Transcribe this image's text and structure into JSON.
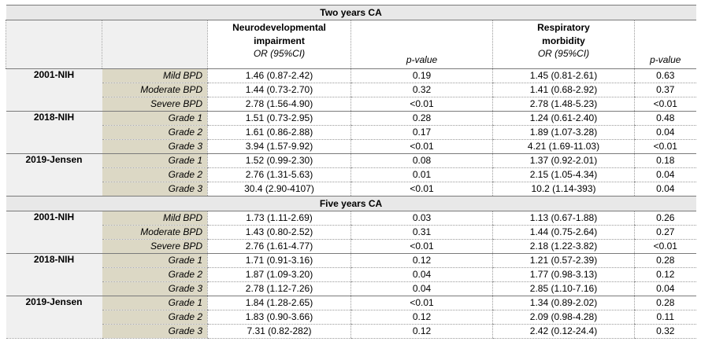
{
  "sections": [
    {
      "title": "Two years CA",
      "groups": [
        {
          "name": "2001-NIH",
          "rows": [
            {
              "label": "Mild BPD",
              "ndi_or": "1.46 (0.87-2.42)",
              "ndi_p": "0.19",
              "resp_or": "1.45 (0.81-2.61)",
              "resp_p": "0.63"
            },
            {
              "label": "Moderate BPD",
              "ndi_or": "1.44 (0.73-2.70)",
              "ndi_p": "0.32",
              "resp_or": "1.41 (0.68-2.92)",
              "resp_p": "0.37"
            },
            {
              "label": "Severe BPD",
              "ndi_or": "2.78 (1.56-4.90)",
              "ndi_p": "<0.01",
              "resp_or": "2.78 (1.48-5.23)",
              "resp_p": "<0.01"
            }
          ]
        },
        {
          "name": "2018-NIH",
          "rows": [
            {
              "label": "Grade 1",
              "ndi_or": "1.51 (0.73-2.95)",
              "ndi_p": "0.28",
              "resp_or": "1.24 (0.61-2.40)",
              "resp_p": "0.48"
            },
            {
              "label": "Grade 2",
              "ndi_or": "1.61 (0.86-2.88)",
              "ndi_p": "0.17",
              "resp_or": "1.89 (1.07-3.28)",
              "resp_p": "0.04"
            },
            {
              "label": "Grade 3",
              "ndi_or": "3.94 (1.57-9.92)",
              "ndi_p": "<0.01",
              "resp_or": "4.21 (1.69-11.03)",
              "resp_p": "<0.01"
            }
          ]
        },
        {
          "name": "2019-Jensen",
          "rows": [
            {
              "label": "Grade 1",
              "ndi_or": "1.52 (0.99-2.30)",
              "ndi_p": "0.08",
              "resp_or": "1.37 (0.92-2.01)",
              "resp_p": "0.18"
            },
            {
              "label": "Grade 2",
              "ndi_or": "2.76 (1.31-5.63)",
              "ndi_p": "0.01",
              "resp_or": "2.15 (1.05-4.34)",
              "resp_p": "0.04"
            },
            {
              "label": "Grade 3",
              "ndi_or": "30.4 (2.90-4107)",
              "ndi_p": "<0.01",
              "resp_or": "10.2 (1.14-393)",
              "resp_p": "0.04"
            }
          ]
        }
      ]
    },
    {
      "title": "Five years CA",
      "groups": [
        {
          "name": "2001-NIH",
          "rows": [
            {
              "label": "Mild BPD",
              "ndi_or": "1.73 (1.11-2.69)",
              "ndi_p": "0.03",
              "resp_or": "1.13 (0.67-1.88)",
              "resp_p": "0.26"
            },
            {
              "label": "Moderate BPD",
              "ndi_or": "1.43 (0.80-2.52)",
              "ndi_p": "0.31",
              "resp_or": "1.44 (0.75-2.64)",
              "resp_p": "0.27"
            },
            {
              "label": "Severe BPD",
              "ndi_or": "2.76 (1.61-4.77)",
              "ndi_p": "<0.01",
              "resp_or": "2.18 (1.22-3.82)",
              "resp_p": "<0.01"
            }
          ]
        },
        {
          "name": "2018-NIH",
          "rows": [
            {
              "label": "Grade 1",
              "ndi_or": "1.71 (0.91-3.16)",
              "ndi_p": "0.12",
              "resp_or": "1.21 (0.57-2.39)",
              "resp_p": "0.28"
            },
            {
              "label": "Grade 2",
              "ndi_or": "1.87 (1.09-3.20)",
              "ndi_p": "0.04",
              "resp_or": "1.77 (0.98-3.13)",
              "resp_p": "0.12"
            },
            {
              "label": "Grade 3",
              "ndi_or": "2.78 (1.12-7.26)",
              "ndi_p": "0.04",
              "resp_or": "2.85 (1.10-7.16)",
              "resp_p": "0.04"
            }
          ]
        },
        {
          "name": "2019-Jensen",
          "rows": [
            {
              "label": "Grade 1",
              "ndi_or": "1.84 (1.28-2.65)",
              "ndi_p": "<0.01",
              "resp_or": "1.34 (0.89-2.02)",
              "resp_p": "0.28"
            },
            {
              "label": "Grade 2",
              "ndi_or": "1.83 (0.90-3.66)",
              "ndi_p": "0.12",
              "resp_or": "2.09 (0.98-4.28)",
              "resp_p": "0.11"
            },
            {
              "label": "Grade 3",
              "ndi_or": "7.31 (0.82-282)",
              "ndi_p": "0.12",
              "resp_or": "2.42 (0.12-24.4)",
              "resp_p": "0.32"
            }
          ]
        }
      ]
    }
  ],
  "header": {
    "ndi_title_line1": "Neurodevelopmental",
    "ndi_title_line2": "impairment",
    "ndi_sub": "OR (95%CI)",
    "ndi_p": "p-value",
    "resp_title_line1": "Respiratory",
    "resp_title_line2": "morbidity",
    "resp_sub": "OR (95%CI)",
    "resp_p": "p-value"
  }
}
